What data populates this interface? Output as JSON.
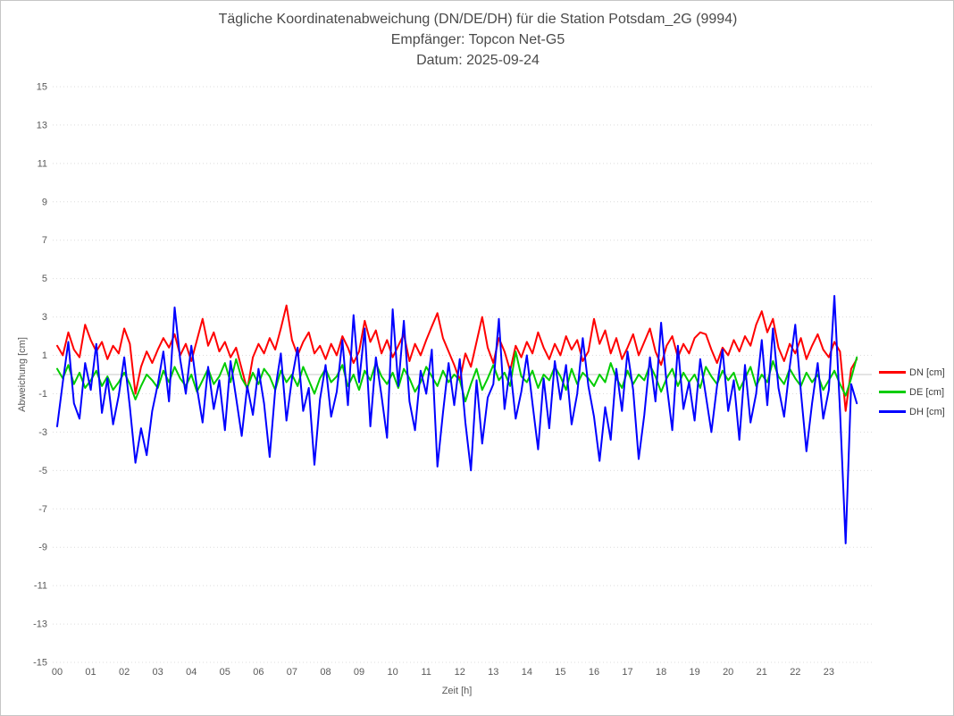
{
  "window": {
    "background": "#ffffff",
    "border_color": "#c6c6c6"
  },
  "colors": {
    "grid_line": "#dcdcdc",
    "zero_line": "#c8c8c8",
    "tick_text": "#595959",
    "title_text": "#4a4a4a",
    "legend_text": "#3d3d3d"
  },
  "chart_data": {
    "type": "line",
    "title": "Tägliche Koordinatenabweichung (DN/DE/DH) für die Station Potsdam_2G (9994)",
    "subtitle_receiver": "Empfänger: Topcon Net-G5",
    "subtitle_date": "Datum: 2025-09-24",
    "xlabel": "Zeit [h]",
    "ylabel": "Abweichung [cm]",
    "xlim": [
      0,
      24
    ],
    "ylim": [
      -15,
      15
    ],
    "grid": "horizontal-dotted",
    "zero_line": true,
    "legend_position": "right",
    "x_ticks": [
      "00",
      "01",
      "02",
      "03",
      "04",
      "05",
      "06",
      "07",
      "08",
      "09",
      "10",
      "11",
      "12",
      "13",
      "14",
      "15",
      "16",
      "17",
      "18",
      "19",
      "20",
      "21",
      "22",
      "23"
    ],
    "y_ticks": [
      15,
      13,
      11,
      9,
      7,
      5,
      3,
      1,
      -1,
      -3,
      -5,
      -7,
      -9,
      -11,
      -13,
      -15
    ],
    "sample_interval_minutes": 10,
    "start_hour": 0,
    "series": [
      {
        "name": "DN [cm]",
        "color": "#ff0000",
        "values": [
          1.5,
          1.0,
          2.2,
          1.3,
          0.9,
          2.6,
          1.8,
          1.2,
          1.7,
          0.8,
          1.5,
          1.1,
          2.4,
          1.6,
          -1.0,
          0.4,
          1.2,
          0.6,
          1.3,
          1.9,
          1.4,
          2.1,
          1.0,
          1.6,
          0.7,
          1.8,
          2.9,
          1.5,
          2.2,
          1.2,
          1.7,
          0.9,
          1.4,
          0.3,
          -0.8,
          0.9,
          1.6,
          1.1,
          1.9,
          1.3,
          2.4,
          3.6,
          1.8,
          1.0,
          1.7,
          2.2,
          1.1,
          1.5,
          0.8,
          1.6,
          1.0,
          2.0,
          1.4,
          0.6,
          1.2,
          2.8,
          1.7,
          2.3,
          1.1,
          1.8,
          0.9,
          1.5,
          2.1,
          0.7,
          1.6,
          1.0,
          1.8,
          2.5,
          3.2,
          1.9,
          1.2,
          0.5,
          -0.3,
          1.1,
          0.4,
          1.7,
          3.0,
          1.4,
          0.6,
          1.9,
          1.2,
          0.2,
          1.5,
          0.9,
          1.7,
          1.1,
          2.2,
          1.4,
          0.8,
          1.6,
          1.0,
          2.0,
          1.3,
          1.8,
          0.7,
          1.2,
          2.9,
          1.6,
          2.3,
          1.1,
          1.9,
          0.8,
          1.4,
          2.1,
          1.0,
          1.7,
          2.4,
          1.2,
          0.5,
          1.5,
          2.0,
          0.9,
          1.6,
          1.1,
          1.9,
          2.2,
          2.1,
          1.3,
          0.6,
          1.4,
          1.0,
          1.8,
          1.2,
          2.0,
          1.5,
          2.6,
          3.3,
          2.2,
          2.9,
          1.4,
          0.7,
          1.6,
          1.1,
          1.9,
          0.8,
          1.5,
          2.1,
          1.3,
          0.9,
          1.7,
          1.2,
          -1.9,
          0.3,
          0.8
        ]
      },
      {
        "name": "DE [cm]",
        "color": "#00cc00",
        "values": [
          0.3,
          -0.2,
          0.5,
          -0.5,
          0.1,
          -0.7,
          -0.3,
          0.2,
          -0.6,
          -0.1,
          -0.8,
          -0.4,
          0.1,
          -0.5,
          -1.3,
          -0.6,
          0.0,
          -0.3,
          -0.7,
          0.2,
          -0.4,
          0.4,
          -0.2,
          -0.6,
          0.0,
          -0.9,
          -0.3,
          0.3,
          -0.5,
          -0.1,
          0.6,
          -0.4,
          0.8,
          -0.2,
          -0.7,
          0.1,
          -0.5,
          0.3,
          -0.1,
          -0.8,
          0.2,
          -0.4,
          0.0,
          -0.6,
          0.4,
          -0.3,
          -1.0,
          -0.2,
          0.3,
          -0.4,
          -0.1,
          0.5,
          -0.6,
          0.0,
          -0.8,
          0.2,
          -0.3,
          0.6,
          -0.1,
          -0.5,
          0.1,
          -0.7,
          0.3,
          -0.2,
          -0.9,
          -0.4,
          0.4,
          -0.1,
          -0.6,
          0.2,
          -0.4,
          0.0,
          -0.3,
          -1.4,
          -0.5,
          0.3,
          -0.8,
          -0.2,
          0.5,
          -0.3,
          0.1,
          -0.6,
          1.2,
          -0.1,
          -0.4,
          0.2,
          -0.7,
          0.0,
          -0.3,
          0.4,
          -0.1,
          -0.8,
          0.3,
          -0.5,
          0.1,
          -0.2,
          -0.6,
          0.0,
          -0.4,
          0.6,
          -0.2,
          -0.7,
          0.2,
          -0.5,
          0.0,
          -0.3,
          0.5,
          -0.1,
          -0.9,
          -0.2,
          0.3,
          -0.6,
          0.1,
          -0.4,
          0.0,
          -0.7,
          0.4,
          -0.1,
          -0.5,
          0.2,
          -0.3,
          0.1,
          -0.8,
          -0.2,
          0.4,
          -0.6,
          0.0,
          -0.4,
          0.7,
          -0.1,
          -0.5,
          0.3,
          -0.2,
          -0.6,
          0.1,
          -0.4,
          0.0,
          -0.8,
          -0.3,
          0.2,
          -0.5,
          -1.1,
          -0.2,
          0.9
        ]
      },
      {
        "name": "DH [cm]",
        "color": "#0000ff",
        "values": [
          -2.7,
          -0.4,
          1.7,
          -1.5,
          -2.3,
          0.6,
          -0.8,
          1.6,
          -2.0,
          -0.2,
          -2.6,
          -1.1,
          0.9,
          -1.7,
          -4.6,
          -2.8,
          -4.2,
          -1.9,
          -0.5,
          1.2,
          -1.4,
          3.5,
          0.8,
          -1.0,
          1.5,
          -0.7,
          -2.5,
          0.4,
          -1.8,
          -0.3,
          -2.9,
          0.7,
          -1.2,
          -3.2,
          -0.6,
          -2.1,
          0.3,
          -1.5,
          -4.3,
          -0.8,
          1.1,
          -2.4,
          -0.2,
          1.4,
          -1.9,
          -0.7,
          -4.7,
          -1.3,
          0.5,
          -2.2,
          -0.9,
          1.8,
          -1.6,
          3.1,
          -0.4,
          2.4,
          -2.7,
          0.9,
          -1.1,
          -3.3,
          3.4,
          -0.6,
          2.8,
          -1.4,
          -2.9,
          0.2,
          -1.0,
          1.3,
          -4.8,
          -2.0,
          0.6,
          -1.6,
          0.8,
          -2.5,
          -5.0,
          -0.3,
          -3.6,
          -1.2,
          -0.5,
          2.9,
          -1.8,
          0.4,
          -2.3,
          -0.9,
          1.0,
          -1.5,
          -3.9,
          -0.2,
          -2.8,
          0.7,
          -1.3,
          0.5,
          -2.6,
          -1.0,
          1.9,
          -0.6,
          -2.2,
          -4.5,
          -1.7,
          -3.4,
          0.3,
          -1.9,
          1.2,
          -0.8,
          -4.4,
          -2.1,
          0.9,
          -1.4,
          2.7,
          -0.5,
          -2.9,
          1.5,
          -1.8,
          -0.4,
          -2.4,
          0.8,
          -1.1,
          -3.0,
          -0.6,
          1.3,
          -1.9,
          -0.3,
          -3.4,
          0.5,
          -2.5,
          -1.0,
          1.8,
          -1.6,
          2.4,
          -0.7,
          -2.2,
          0.4,
          2.6,
          -0.9,
          -4.0,
          -1.5,
          0.6,
          -2.3,
          -0.8,
          4.1,
          -1.9,
          -8.8,
          -0.5,
          -1.5
        ]
      }
    ]
  }
}
